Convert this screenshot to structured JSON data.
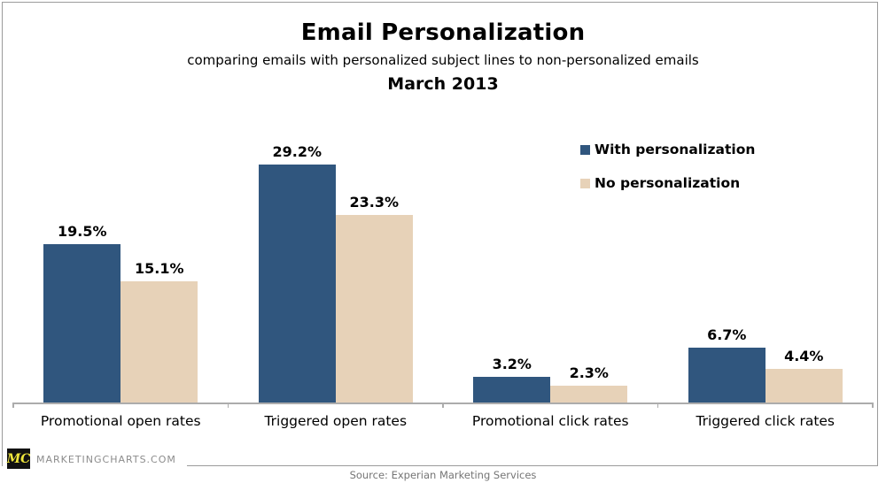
{
  "header": {
    "title": "Email Personalization",
    "subtitle": "comparing emails with personalized subject lines to non-personalized emails",
    "period": "March 2013"
  },
  "chart_data": {
    "type": "bar",
    "title": "Email Personalization",
    "subtitle": "comparing emails with personalized subject lines to non-personalized emails",
    "period": "March 2013",
    "categories": [
      "Promotional open rates",
      "Triggered open rates",
      "Promotional click rates",
      "Triggered click rates"
    ],
    "series": [
      {
        "name": "With personalization",
        "color": "#30567E",
        "values": [
          19.5,
          29.2,
          3.2,
          6.7
        ],
        "labels": [
          "19.5%",
          "29.2%",
          "3.2%",
          "6.7%"
        ]
      },
      {
        "name": "No personalization",
        "color": "#E7D2B8",
        "values": [
          15.1,
          23.3,
          2.3,
          4.4
        ],
        "labels": [
          "15.1%",
          "23.3%",
          "2.3%",
          "4.4%"
        ]
      }
    ],
    "ylim": [
      0,
      31.5
    ],
    "y_axis_visible": false,
    "grid": false,
    "legend_position": "upper-right",
    "value_label_suffix": "%"
  },
  "footer": {
    "logo_text": "MC",
    "site_text": "MARKETINGCHARTS.COM",
    "source_text": "Source: Experian Marketing Services"
  },
  "colors": {
    "with_personalization": "#30567E",
    "no_personalization": "#E7D2B8",
    "frame": "#9B9B9B",
    "axis": "#ACACAC",
    "footer_text": "#8C8C8C",
    "source_text": "#757575",
    "logo_bg": "#111111",
    "logo_fg": "#EFE63C"
  }
}
